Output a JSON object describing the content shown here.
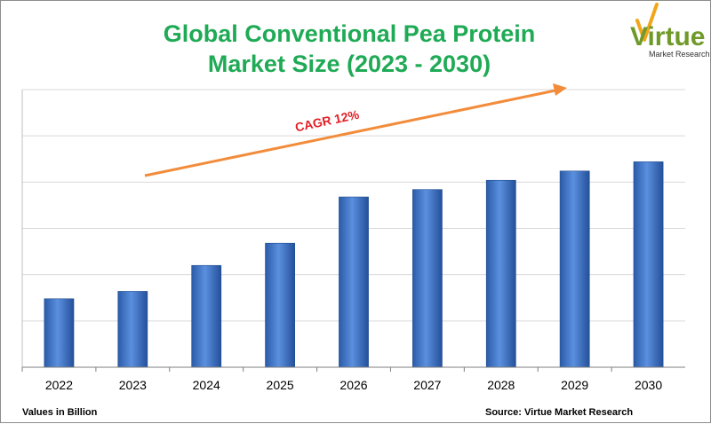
{
  "chart_data": {
    "type": "bar",
    "title_lines": [
      "Global Conventional Pea Protein",
      "Market Size  (2023 - 2030)"
    ],
    "categories": [
      "2022",
      "2023",
      "2024",
      "2025",
      "2026",
      "2027",
      "2028",
      "2029",
      "2030"
    ],
    "values": [
      3.7,
      4.1,
      5.5,
      6.7,
      9.2,
      9.6,
      10.1,
      10.6,
      11.1
    ],
    "ylim": [
      0,
      15
    ],
    "grid": true,
    "bar_color": "#3a73c8",
    "annotation": {
      "label": "CAGR 12%",
      "color": "#e31f26",
      "arrow_color": "#f28c3b"
    }
  },
  "footer": {
    "units": "Values in Billion",
    "source": "Source: Virtue Market Research"
  },
  "logo": {
    "name": "Virtue",
    "tagline": "Market Research",
    "color": "#6f9a2a",
    "accent_color": "#f2a51a"
  }
}
